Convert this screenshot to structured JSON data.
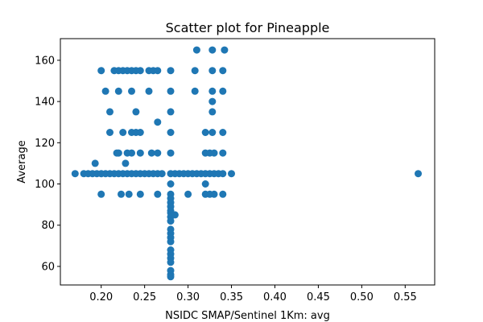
{
  "chart_data": {
    "type": "scatter",
    "title": "Scatter plot for Pineapple",
    "xlabel": "NSIDC SMAP/Sentinel 1Km: avg",
    "ylabel": "Average",
    "xlim": [
      0.153,
      0.584
    ],
    "ylim": [
      51,
      170.5
    ],
    "grid": false,
    "x_ticks": [
      0.2,
      0.25,
      0.3,
      0.35,
      0.4,
      0.45,
      0.5,
      0.55
    ],
    "x_tick_labels": [
      "0.20",
      "0.25",
      "0.30",
      "0.35",
      "0.40",
      "0.45",
      "0.50",
      "0.55"
    ],
    "y_ticks": [
      60,
      80,
      100,
      120,
      140,
      160
    ],
    "y_tick_labels": [
      "60",
      "80",
      "100",
      "120",
      "140",
      "160"
    ],
    "marker_color": "#1f77b4",
    "points": [
      [
        0.17,
        105
      ],
      [
        0.18,
        105
      ],
      [
        0.185,
        105
      ],
      [
        0.19,
        105
      ],
      [
        0.195,
        105
      ],
      [
        0.2,
        105
      ],
      [
        0.205,
        105
      ],
      [
        0.21,
        105
      ],
      [
        0.215,
        105
      ],
      [
        0.22,
        105
      ],
      [
        0.225,
        105
      ],
      [
        0.23,
        105
      ],
      [
        0.235,
        105
      ],
      [
        0.24,
        105
      ],
      [
        0.245,
        105
      ],
      [
        0.25,
        105
      ],
      [
        0.255,
        105
      ],
      [
        0.26,
        105
      ],
      [
        0.265,
        105
      ],
      [
        0.27,
        105
      ],
      [
        0.28,
        105
      ],
      [
        0.285,
        105
      ],
      [
        0.29,
        105
      ],
      [
        0.295,
        105
      ],
      [
        0.3,
        105
      ],
      [
        0.305,
        105
      ],
      [
        0.31,
        105
      ],
      [
        0.315,
        105
      ],
      [
        0.32,
        105
      ],
      [
        0.325,
        105
      ],
      [
        0.33,
        105
      ],
      [
        0.335,
        105
      ],
      [
        0.34,
        105
      ],
      [
        0.35,
        105
      ],
      [
        0.565,
        105
      ],
      [
        0.193,
        110
      ],
      [
        0.228,
        110
      ],
      [
        0.2,
        95
      ],
      [
        0.223,
        95
      ],
      [
        0.232,
        95
      ],
      [
        0.245,
        95
      ],
      [
        0.265,
        95
      ],
      [
        0.28,
        95
      ],
      [
        0.3,
        95
      ],
      [
        0.32,
        95
      ],
      [
        0.325,
        95
      ],
      [
        0.33,
        95
      ],
      [
        0.34,
        95
      ],
      [
        0.2,
        155
      ],
      [
        0.215,
        155
      ],
      [
        0.22,
        155
      ],
      [
        0.225,
        155
      ],
      [
        0.23,
        155
      ],
      [
        0.235,
        155
      ],
      [
        0.24,
        155
      ],
      [
        0.245,
        155
      ],
      [
        0.255,
        155
      ],
      [
        0.26,
        155
      ],
      [
        0.265,
        155
      ],
      [
        0.28,
        155
      ],
      [
        0.308,
        155
      ],
      [
        0.328,
        155
      ],
      [
        0.34,
        155
      ],
      [
        0.205,
        145
      ],
      [
        0.22,
        145
      ],
      [
        0.235,
        145
      ],
      [
        0.255,
        145
      ],
      [
        0.28,
        145
      ],
      [
        0.308,
        145
      ],
      [
        0.328,
        145
      ],
      [
        0.34,
        145
      ],
      [
        0.21,
        135
      ],
      [
        0.24,
        135
      ],
      [
        0.28,
        135
      ],
      [
        0.328,
        135
      ],
      [
        0.328,
        140
      ],
      [
        0.265,
        130
      ],
      [
        0.21,
        125
      ],
      [
        0.225,
        125
      ],
      [
        0.235,
        125
      ],
      [
        0.24,
        125
      ],
      [
        0.245,
        125
      ],
      [
        0.28,
        125
      ],
      [
        0.32,
        125
      ],
      [
        0.328,
        125
      ],
      [
        0.34,
        125
      ],
      [
        0.218,
        115
      ],
      [
        0.22,
        115
      ],
      [
        0.23,
        115
      ],
      [
        0.235,
        115
      ],
      [
        0.245,
        115
      ],
      [
        0.258,
        115
      ],
      [
        0.265,
        115
      ],
      [
        0.28,
        115
      ],
      [
        0.32,
        115
      ],
      [
        0.325,
        115
      ],
      [
        0.33,
        115
      ],
      [
        0.34,
        115
      ],
      [
        0.31,
        165
      ],
      [
        0.328,
        165
      ],
      [
        0.342,
        165
      ],
      [
        0.28,
        100
      ],
      [
        0.32,
        100
      ],
      [
        0.28,
        93
      ],
      [
        0.28,
        91
      ],
      [
        0.28,
        89
      ],
      [
        0.28,
        87
      ],
      [
        0.28,
        86
      ],
      [
        0.28,
        84
      ],
      [
        0.285,
        85
      ],
      [
        0.28,
        82
      ],
      [
        0.28,
        78
      ],
      [
        0.28,
        76
      ],
      [
        0.28,
        74
      ],
      [
        0.28,
        72
      ],
      [
        0.28,
        68
      ],
      [
        0.28,
        66
      ],
      [
        0.28,
        64
      ],
      [
        0.28,
        62
      ],
      [
        0.28,
        58
      ],
      [
        0.28,
        56
      ],
      [
        0.28,
        55
      ]
    ]
  }
}
